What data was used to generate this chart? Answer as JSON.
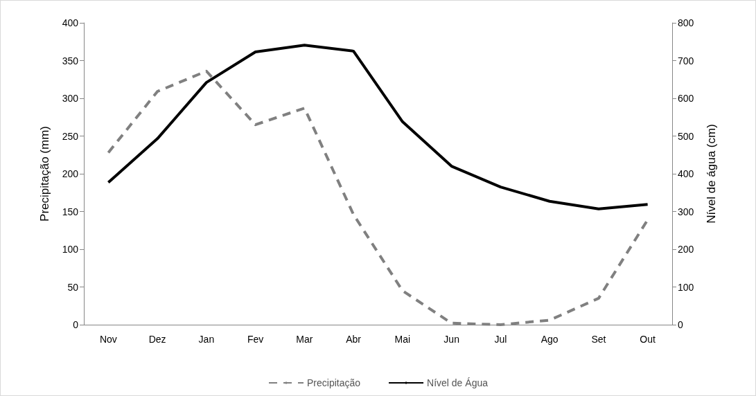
{
  "chart_data": {
    "type": "line",
    "ylabel": "Precipitação (mm)",
    "y2label": "Nível de água (cm)",
    "categories": [
      "Nov",
      "Dez",
      "Jan",
      "Fev",
      "Mar",
      "Abr",
      "Mai",
      "Jun",
      "Jul",
      "Ago",
      "Set",
      "Out"
    ],
    "series": [
      {
        "name": "Precipitação",
        "color": "#808080",
        "line_style": "dashed",
        "values": [
          228,
          309,
          336,
          265,
          287,
          146,
          45,
          2,
          0,
          6,
          35,
          139
        ]
      },
      {
        "name": "Nível de Água",
        "color": "#000000",
        "line_style": "solid",
        "axis": "y2",
        "values": [
          377,
          493,
          642,
          723,
          741,
          725,
          538,
          420,
          365,
          327,
          307,
          319
        ]
      }
    ],
    "ylim": [
      0,
      400
    ],
    "yticks": [
      0,
      50,
      100,
      150,
      200,
      250,
      300,
      350,
      400
    ],
    "y2lim": [
      0,
      800
    ],
    "y2ticks": [
      0,
      100,
      200,
      300,
      400,
      500,
      600,
      700,
      800
    ],
    "grid": false,
    "legend": "bottom",
    "marker": "none"
  }
}
